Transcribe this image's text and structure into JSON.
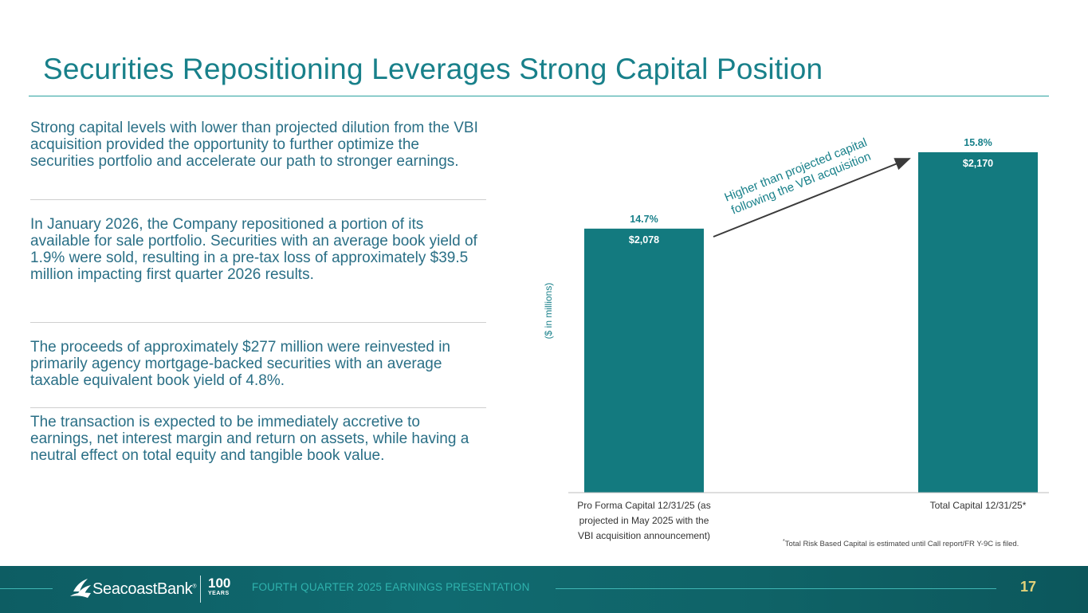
{
  "title": "Securities Repositioning Leverages Strong Capital Position",
  "bullets": [
    "Strong capital levels with lower than projected dilution from the VBI acquisition provided the opportunity to further optimize the securities portfolio and accelerate our path to stronger earnings.",
    "In January 2026, the Company repositioned a portion of its available for sale portfolio. Securities with an average book yield of 1.9% were sold, resulting in a pre-tax loss of approximately $39.5 million impacting first quarter 2026 results.",
    "The proceeds of approximately $277 million were reinvested in primarily agency mortgage-backed securities with an average taxable equivalent book yield of 4.8%.",
    "The transaction is expected to be immediately accretive to earnings, net interest margin and return on assets, while having a neutral effect on total equity and tangible book value."
  ],
  "chart_data": {
    "type": "bar",
    "categories": [
      "Pro Forma Capital 12/31/25 (as projected in May 2025 with the VBI acquisition announcement)",
      "Total Capital 12/31/25*"
    ],
    "category_lines": [
      [
        "Pro Forma Capital 12/31/25 (as",
        "projected in May 2025 with the",
        "VBI acquisition announcement)"
      ],
      [
        "Total Capital 12/31/25*"
      ]
    ],
    "values": [
      2078,
      2170
    ],
    "value_labels": [
      "$2,078",
      "$2,170"
    ],
    "ratio_labels": [
      "14.7%",
      "15.8%"
    ],
    "ylabel": "($ in millions)",
    "annotation": [
      "Higher than projected capital",
      "following the VBI acquisition"
    ],
    "bar_color": "#137a7f"
  },
  "footnote": {
    "marker": "*",
    "text": "Total Risk Based Capital is estimated until Call report/FR Y-9C is filed."
  },
  "footer": {
    "brand": "SeacoastBank",
    "trademark": "®",
    "anniversary": "100",
    "anniversary_sub": "YEARS",
    "presentation": "FOURTH QUARTER 2025 EARNINGS PRESENTATION",
    "page_number": "17"
  }
}
